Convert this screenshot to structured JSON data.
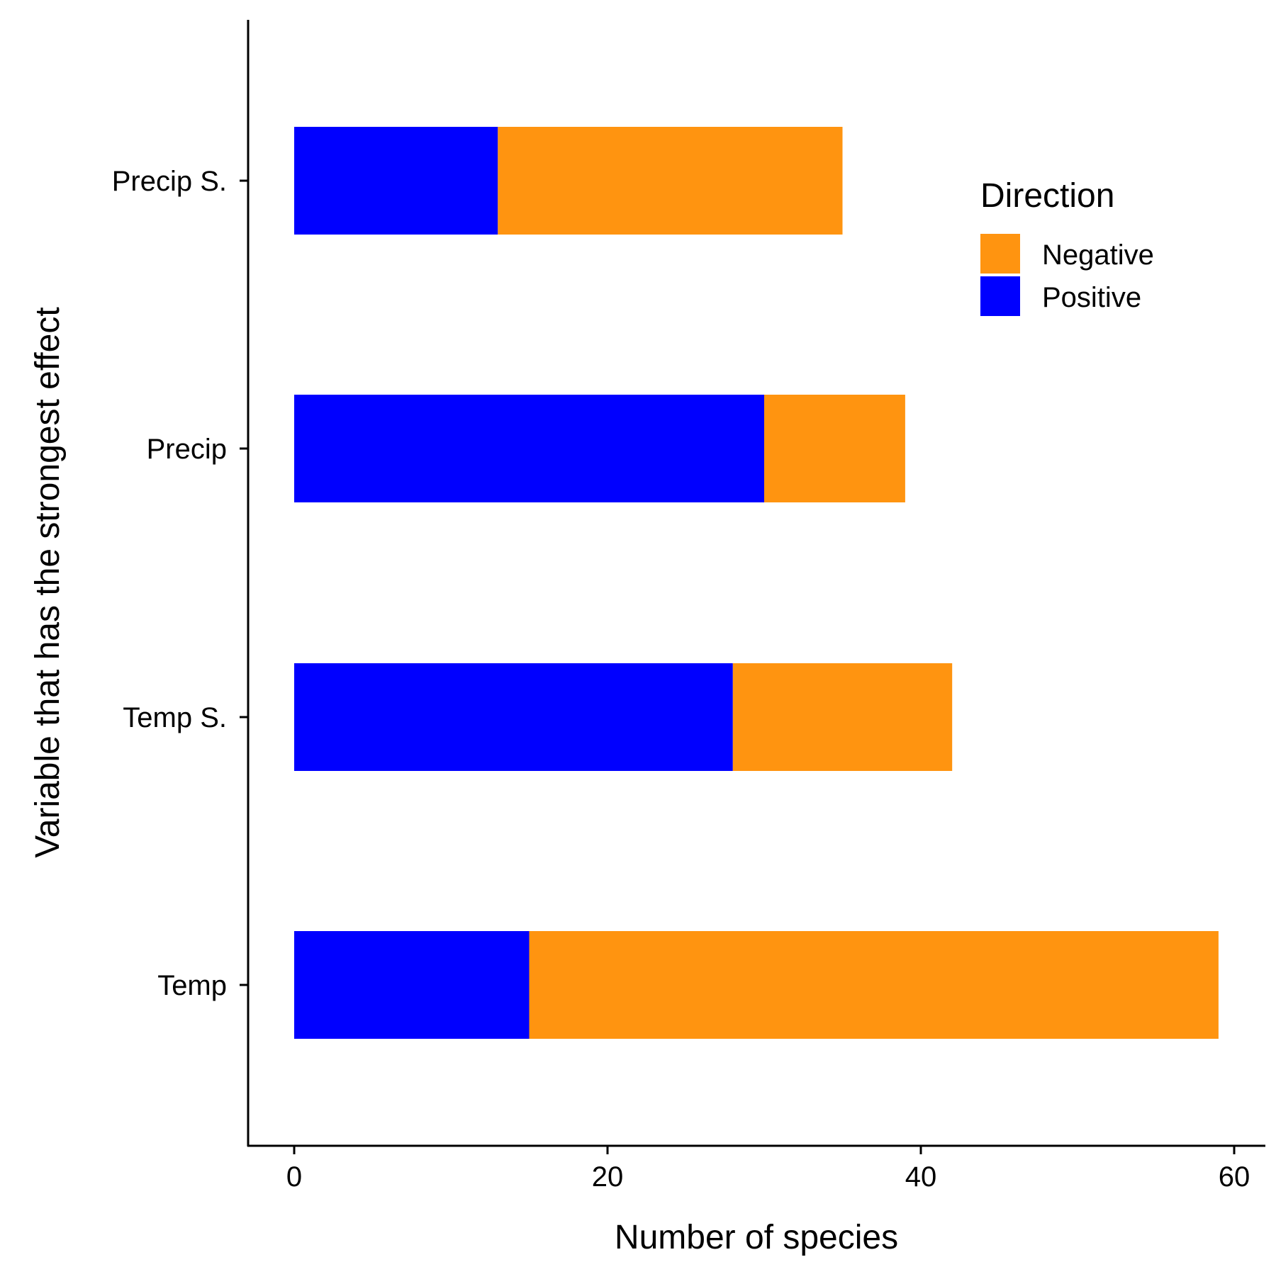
{
  "chart_data": {
    "type": "bar",
    "orientation": "horizontal",
    "stacked": true,
    "categories": [
      "Precip S.",
      "Precip",
      "Temp S.",
      "Temp"
    ],
    "series": [
      {
        "name": "Positive",
        "values": [
          13,
          30,
          28,
          15
        ],
        "color": "#0000ff"
      },
      {
        "name": "Negative",
        "values": [
          22,
          9,
          14,
          44
        ],
        "color": "#ff9410"
      }
    ],
    "xlabel": "Number of species",
    "ylabel": "Variable that has the strongest effect",
    "xlim": [
      -3,
      62
    ],
    "xticks": [
      0,
      20,
      40,
      60
    ],
    "grid": false,
    "legend": {
      "title": "Direction",
      "position": "top-right",
      "entries": [
        {
          "name": "Negative",
          "color": "#ff9410"
        },
        {
          "name": "Positive",
          "color": "#0000ff"
        }
      ]
    }
  }
}
